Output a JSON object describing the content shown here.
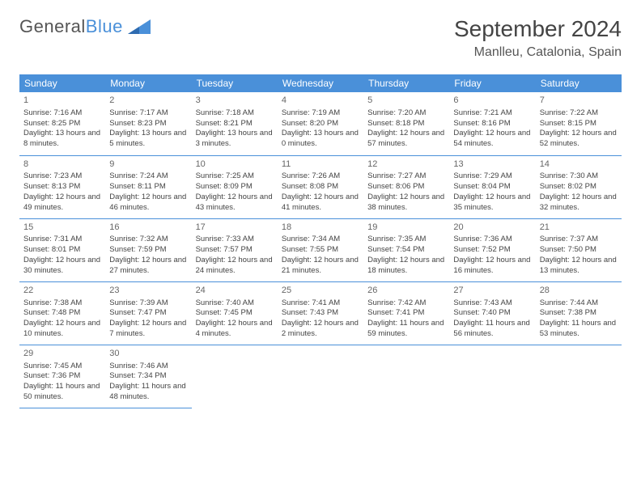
{
  "logo": {
    "text1": "General",
    "text2": "Blue"
  },
  "title": "September 2024",
  "location": "Manlleu, Catalonia, Spain",
  "colors": {
    "accent": "#4a90d9",
    "text": "#444",
    "bg": "#ffffff"
  },
  "weekdays": [
    "Sunday",
    "Monday",
    "Tuesday",
    "Wednesday",
    "Thursday",
    "Friday",
    "Saturday"
  ],
  "days": [
    {
      "n": "1",
      "sr": "7:16 AM",
      "ss": "8:25 PM",
      "dl": "13 hours and 8 minutes."
    },
    {
      "n": "2",
      "sr": "7:17 AM",
      "ss": "8:23 PM",
      "dl": "13 hours and 5 minutes."
    },
    {
      "n": "3",
      "sr": "7:18 AM",
      "ss": "8:21 PM",
      "dl": "13 hours and 3 minutes."
    },
    {
      "n": "4",
      "sr": "7:19 AM",
      "ss": "8:20 PM",
      "dl": "13 hours and 0 minutes."
    },
    {
      "n": "5",
      "sr": "7:20 AM",
      "ss": "8:18 PM",
      "dl": "12 hours and 57 minutes."
    },
    {
      "n": "6",
      "sr": "7:21 AM",
      "ss": "8:16 PM",
      "dl": "12 hours and 54 minutes."
    },
    {
      "n": "7",
      "sr": "7:22 AM",
      "ss": "8:15 PM",
      "dl": "12 hours and 52 minutes."
    },
    {
      "n": "8",
      "sr": "7:23 AM",
      "ss": "8:13 PM",
      "dl": "12 hours and 49 minutes."
    },
    {
      "n": "9",
      "sr": "7:24 AM",
      "ss": "8:11 PM",
      "dl": "12 hours and 46 minutes."
    },
    {
      "n": "10",
      "sr": "7:25 AM",
      "ss": "8:09 PM",
      "dl": "12 hours and 43 minutes."
    },
    {
      "n": "11",
      "sr": "7:26 AM",
      "ss": "8:08 PM",
      "dl": "12 hours and 41 minutes."
    },
    {
      "n": "12",
      "sr": "7:27 AM",
      "ss": "8:06 PM",
      "dl": "12 hours and 38 minutes."
    },
    {
      "n": "13",
      "sr": "7:29 AM",
      "ss": "8:04 PM",
      "dl": "12 hours and 35 minutes."
    },
    {
      "n": "14",
      "sr": "7:30 AM",
      "ss": "8:02 PM",
      "dl": "12 hours and 32 minutes."
    },
    {
      "n": "15",
      "sr": "7:31 AM",
      "ss": "8:01 PM",
      "dl": "12 hours and 30 minutes."
    },
    {
      "n": "16",
      "sr": "7:32 AM",
      "ss": "7:59 PM",
      "dl": "12 hours and 27 minutes."
    },
    {
      "n": "17",
      "sr": "7:33 AM",
      "ss": "7:57 PM",
      "dl": "12 hours and 24 minutes."
    },
    {
      "n": "18",
      "sr": "7:34 AM",
      "ss": "7:55 PM",
      "dl": "12 hours and 21 minutes."
    },
    {
      "n": "19",
      "sr": "7:35 AM",
      "ss": "7:54 PM",
      "dl": "12 hours and 18 minutes."
    },
    {
      "n": "20",
      "sr": "7:36 AM",
      "ss": "7:52 PM",
      "dl": "12 hours and 16 minutes."
    },
    {
      "n": "21",
      "sr": "7:37 AM",
      "ss": "7:50 PM",
      "dl": "12 hours and 13 minutes."
    },
    {
      "n": "22",
      "sr": "7:38 AM",
      "ss": "7:48 PM",
      "dl": "12 hours and 10 minutes."
    },
    {
      "n": "23",
      "sr": "7:39 AM",
      "ss": "7:47 PM",
      "dl": "12 hours and 7 minutes."
    },
    {
      "n": "24",
      "sr": "7:40 AM",
      "ss": "7:45 PM",
      "dl": "12 hours and 4 minutes."
    },
    {
      "n": "25",
      "sr": "7:41 AM",
      "ss": "7:43 PM",
      "dl": "12 hours and 2 minutes."
    },
    {
      "n": "26",
      "sr": "7:42 AM",
      "ss": "7:41 PM",
      "dl": "11 hours and 59 minutes."
    },
    {
      "n": "27",
      "sr": "7:43 AM",
      "ss": "7:40 PM",
      "dl": "11 hours and 56 minutes."
    },
    {
      "n": "28",
      "sr": "7:44 AM",
      "ss": "7:38 PM",
      "dl": "11 hours and 53 minutes."
    },
    {
      "n": "29",
      "sr": "7:45 AM",
      "ss": "7:36 PM",
      "dl": "11 hours and 50 minutes."
    },
    {
      "n": "30",
      "sr": "7:46 AM",
      "ss": "7:34 PM",
      "dl": "11 hours and 48 minutes."
    }
  ],
  "labels": {
    "sunrise": "Sunrise:",
    "sunset": "Sunset:",
    "daylight": "Daylight:"
  },
  "firstDayOffset": 0,
  "font": {
    "title_pt": 28,
    "location_pt": 16,
    "header_pt": 12,
    "body_pt": 9.5,
    "daynum_pt": 11
  }
}
